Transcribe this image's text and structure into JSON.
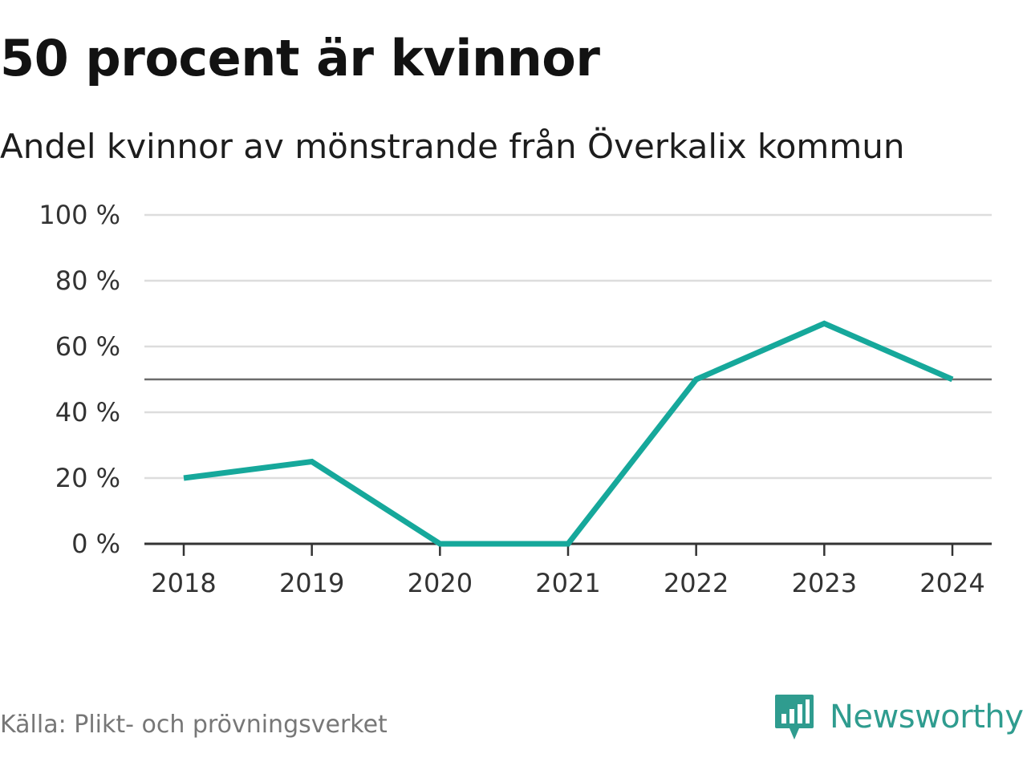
{
  "header": {
    "title": "50 procent är kvinnor",
    "subtitle": "Andel kvinnor av mönstrande från Överkalix kommun"
  },
  "footer": {
    "source": "Källa: Plikt- och prövningsverket",
    "brand": "Newsworthy",
    "brand_icon": "newsworthy-bar-chart-icon"
  },
  "colors": {
    "line": "#16a89b",
    "reference_line": "#6b6b6b",
    "grid": "#dddddd",
    "axis": "#333333",
    "brand": "#2f9c8f"
  },
  "chart_data": {
    "type": "line",
    "categories": [
      "2018",
      "2019",
      "2020",
      "2021",
      "2022",
      "2023",
      "2024"
    ],
    "series": [
      {
        "values": [
          20,
          25,
          0,
          0,
          50,
          67,
          50
        ]
      }
    ],
    "reference_line": 50,
    "ylim": [
      0,
      100
    ],
    "yticks": [
      {
        "value": 0,
        "label": "0 %"
      },
      {
        "value": 20,
        "label": "20 %"
      },
      {
        "value": 40,
        "label": "40 %"
      },
      {
        "value": 60,
        "label": "60 %"
      },
      {
        "value": 80,
        "label": "80 %"
      },
      {
        "value": 100,
        "label": "100 %"
      }
    ],
    "grid": true,
    "legend": "none"
  }
}
